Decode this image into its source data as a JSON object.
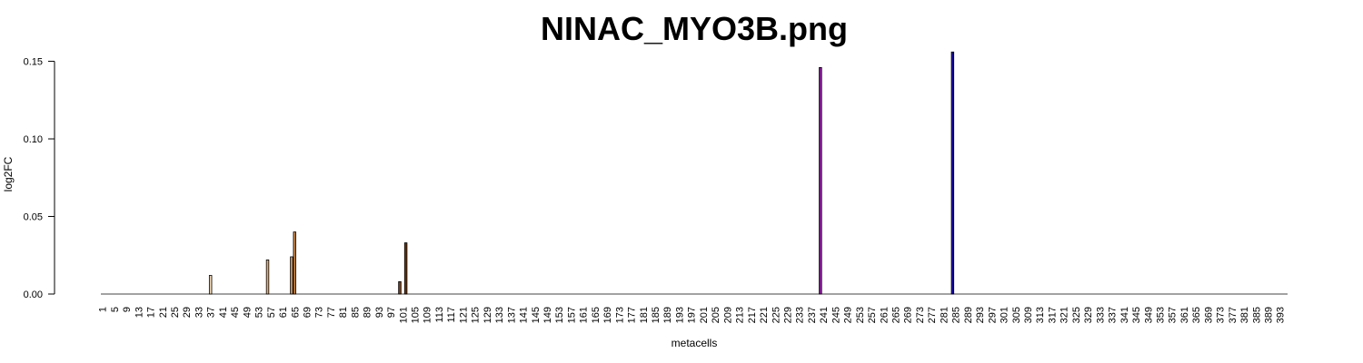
{
  "chart_data": {
    "type": "bar",
    "title": "NINAC_MYO3B.png",
    "xlabel": "metacells",
    "ylabel": "log2FC",
    "ylim": [
      0,
      0.155
    ],
    "yticks": [
      "0.00",
      "0.05",
      "0.10",
      "0.15"
    ],
    "ytick_values": [
      0,
      0.05,
      0.1,
      0.15
    ],
    "x_count": 395,
    "xtick_labels": [
      "1",
      "5",
      "9",
      "13",
      "17",
      "21",
      "25",
      "29",
      "33",
      "37",
      "41",
      "45",
      "49",
      "53",
      "57",
      "61",
      "65",
      "69",
      "73",
      "77",
      "81",
      "85",
      "89",
      "93",
      "97",
      "101",
      "105",
      "109",
      "113",
      "117",
      "121",
      "125",
      "129",
      "133",
      "137",
      "141",
      "145",
      "149",
      "153",
      "157",
      "161",
      "165",
      "169",
      "173",
      "177",
      "181",
      "185",
      "189",
      "193",
      "197",
      "201",
      "205",
      "209",
      "213",
      "217",
      "221",
      "225",
      "229",
      "233",
      "237",
      "241",
      "245",
      "249",
      "253",
      "257",
      "261",
      "265",
      "269",
      "273",
      "277",
      "281",
      "285",
      "289",
      "293",
      "297",
      "301",
      "305",
      "309",
      "313",
      "317",
      "321",
      "325",
      "329",
      "333",
      "337",
      "341",
      "345",
      "349",
      "353",
      "357",
      "361",
      "365",
      "369",
      "373",
      "377",
      "381",
      "385",
      "389",
      "393"
    ],
    "bars": [
      {
        "x": 37,
        "value": 0.012,
        "color": "#f2d9b8"
      },
      {
        "x": 56,
        "value": 0.022,
        "color": "#e3b07c"
      },
      {
        "x": 64,
        "value": 0.024,
        "color": "#d4945a"
      },
      {
        "x": 65,
        "value": 0.04,
        "color": "#c98446"
      },
      {
        "x": 100,
        "value": 0.008,
        "color": "#7a3e14"
      },
      {
        "x": 102,
        "value": 0.033,
        "color": "#6b3510"
      },
      {
        "x": 240,
        "value": 0.146,
        "color": "#8b1a9e"
      },
      {
        "x": 284,
        "value": 0.156,
        "color": "#1a0aa8"
      }
    ]
  }
}
